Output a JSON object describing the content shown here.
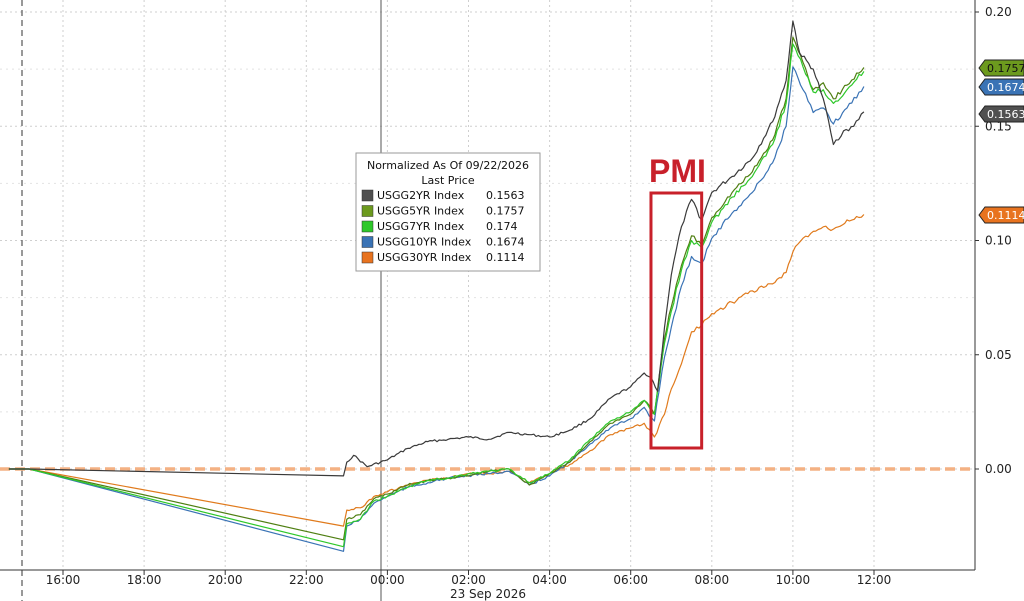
{
  "chart_data": {
    "type": "line",
    "legend": {
      "title": "Normalized As Of 09/22/2026",
      "subtitle": "Last Price",
      "placement": "top-center"
    },
    "annotation": {
      "label": "PMI",
      "x_range": [
        "06:30",
        "07:45"
      ],
      "color": "#c8202a"
    },
    "x_axis": {
      "ticks": [
        "16:00",
        "18:00",
        "20:00",
        "22:00",
        "00:00",
        "02:00",
        "04:00",
        "06:00",
        "08:00",
        "10:00",
        "12:00"
      ],
      "date_label": "23 Sep 2026"
    },
    "y_axis": {
      "ticks": [
        "0.00",
        "0.05",
        "0.10",
        "0.15",
        "0.20"
      ],
      "ylim": [
        -0.042,
        0.21
      ],
      "position": "right"
    },
    "grid": true,
    "series": [
      {
        "name": "USGG2YR Index",
        "last": "0.1563",
        "color": "#3a3a3a",
        "tag_color": "#505050",
        "points": [
          [
            "14:40",
            0
          ],
          [
            "15:10",
            0.0
          ],
          [
            "22:55",
            -0.003
          ],
          [
            "23:00",
            0.003
          ],
          [
            "23:10",
            0.006
          ],
          [
            "23:30",
            0.001
          ],
          [
            "00:00",
            0.004
          ],
          [
            "00:30",
            0.009
          ],
          [
            "01:00",
            0.012
          ],
          [
            "01:30",
            0.013
          ],
          [
            "02:00",
            0.014
          ],
          [
            "02:30",
            0.013
          ],
          [
            "03:00",
            0.016
          ],
          [
            "03:30",
            0.015
          ],
          [
            "04:00",
            0.014
          ],
          [
            "04:30",
            0.017
          ],
          [
            "05:00",
            0.022
          ],
          [
            "05:30",
            0.031
          ],
          [
            "06:00",
            0.036
          ],
          [
            "06:20",
            0.042
          ],
          [
            "06:30",
            0.04
          ],
          [
            "06:40",
            0.034
          ],
          [
            "06:50",
            0.062
          ],
          [
            "07:00",
            0.085
          ],
          [
            "07:15",
            0.106
          ],
          [
            "07:30",
            0.118
          ],
          [
            "07:45",
            0.109
          ],
          [
            "08:00",
            0.121
          ],
          [
            "08:30",
            0.128
          ],
          [
            "09:00",
            0.136
          ],
          [
            "09:30",
            0.152
          ],
          [
            "09:50",
            0.17
          ],
          [
            "10:00",
            0.196
          ],
          [
            "10:10",
            0.182
          ],
          [
            "10:30",
            0.175
          ],
          [
            "10:45",
            0.162
          ],
          [
            "11:00",
            0.142
          ],
          [
            "11:15",
            0.148
          ],
          [
            "11:30",
            0.15
          ],
          [
            "11:45",
            0.1563
          ]
        ]
      },
      {
        "name": "USGG5YR Index",
        "last": "0.1757",
        "color": "#4f7f12",
        "tag_color": "#6c9a1e",
        "points": [
          [
            "14:40",
            0
          ],
          [
            "15:10",
            0.0
          ],
          [
            "22:55",
            -0.031
          ],
          [
            "23:00",
            -0.022
          ],
          [
            "23:20",
            -0.02
          ],
          [
            "23:40",
            -0.013
          ],
          [
            "00:00",
            -0.011
          ],
          [
            "00:30",
            -0.007
          ],
          [
            "01:00",
            -0.005
          ],
          [
            "01:30",
            -0.004
          ],
          [
            "02:00",
            -0.003
          ],
          [
            "02:30",
            -0.001
          ],
          [
            "03:00",
            0.0
          ],
          [
            "03:30",
            -0.007
          ],
          [
            "04:00",
            -0.002
          ],
          [
            "04:30",
            0.003
          ],
          [
            "05:00",
            0.012
          ],
          [
            "05:30",
            0.02
          ],
          [
            "06:00",
            0.024
          ],
          [
            "06:20",
            0.03
          ],
          [
            "06:35",
            0.024
          ],
          [
            "06:50",
            0.057
          ],
          [
            "07:00",
            0.071
          ],
          [
            "07:15",
            0.089
          ],
          [
            "07:30",
            0.102
          ],
          [
            "07:45",
            0.098
          ],
          [
            "08:00",
            0.11
          ],
          [
            "08:30",
            0.121
          ],
          [
            "09:00",
            0.13
          ],
          [
            "09:30",
            0.144
          ],
          [
            "09:50",
            0.162
          ],
          [
            "10:00",
            0.189
          ],
          [
            "10:15",
            0.178
          ],
          [
            "10:30",
            0.166
          ],
          [
            "10:45",
            0.169
          ],
          [
            "11:00",
            0.162
          ],
          [
            "11:20",
            0.168
          ],
          [
            "11:45",
            0.1757
          ]
        ]
      },
      {
        "name": "USGG7YR Index",
        "last": "0.174",
        "color": "#2ec82a",
        "tag_color": "#2ec82a",
        "points": [
          [
            "14:40",
            0
          ],
          [
            "15:10",
            0.0
          ],
          [
            "22:55",
            -0.034
          ],
          [
            "23:00",
            -0.024
          ],
          [
            "23:20",
            -0.022
          ],
          [
            "23:40",
            -0.014
          ],
          [
            "00:00",
            -0.012
          ],
          [
            "00:30",
            -0.008
          ],
          [
            "01:00",
            -0.005
          ],
          [
            "01:30",
            -0.004
          ],
          [
            "02:00",
            -0.002
          ],
          [
            "02:30",
            -0.001
          ],
          [
            "03:00",
            0.0
          ],
          [
            "03:30",
            -0.006
          ],
          [
            "04:00",
            -0.002
          ],
          [
            "04:30",
            0.004
          ],
          [
            "05:00",
            0.013
          ],
          [
            "05:30",
            0.021
          ],
          [
            "06:00",
            0.025
          ],
          [
            "06:20",
            0.03
          ],
          [
            "06:35",
            0.024
          ],
          [
            "06:50",
            0.055
          ],
          [
            "07:00",
            0.069
          ],
          [
            "07:15",
            0.087
          ],
          [
            "07:30",
            0.1
          ],
          [
            "07:45",
            0.097
          ],
          [
            "08:00",
            0.108
          ],
          [
            "08:30",
            0.119
          ],
          [
            "09:00",
            0.128
          ],
          [
            "09:30",
            0.142
          ],
          [
            "09:50",
            0.16
          ],
          [
            "10:00",
            0.186
          ],
          [
            "10:15",
            0.176
          ],
          [
            "10:30",
            0.165
          ],
          [
            "10:45",
            0.166
          ],
          [
            "11:00",
            0.16
          ],
          [
            "11:20",
            0.166
          ],
          [
            "11:45",
            0.174
          ]
        ]
      },
      {
        "name": "USGG10YR Index",
        "last": "0.1674",
        "color": "#3a73b5",
        "tag_color": "#3a73b5",
        "points": [
          [
            "14:40",
            0
          ],
          [
            "15:10",
            0.0
          ],
          [
            "22:55",
            -0.036
          ],
          [
            "23:00",
            -0.025
          ],
          [
            "23:20",
            -0.022
          ],
          [
            "23:40",
            -0.015
          ],
          [
            "00:00",
            -0.012
          ],
          [
            "00:30",
            -0.008
          ],
          [
            "01:00",
            -0.006
          ],
          [
            "01:30",
            -0.004
          ],
          [
            "02:00",
            -0.003
          ],
          [
            "02:30",
            -0.002
          ],
          [
            "03:00",
            -0.001
          ],
          [
            "03:30",
            -0.007
          ],
          [
            "04:00",
            -0.003
          ],
          [
            "04:30",
            0.003
          ],
          [
            "05:00",
            0.011
          ],
          [
            "05:30",
            0.018
          ],
          [
            "06:00",
            0.022
          ],
          [
            "06:20",
            0.027
          ],
          [
            "06:35",
            0.021
          ],
          [
            "06:50",
            0.049
          ],
          [
            "07:00",
            0.062
          ],
          [
            "07:15",
            0.08
          ],
          [
            "07:30",
            0.093
          ],
          [
            "07:45",
            0.09
          ],
          [
            "08:00",
            0.101
          ],
          [
            "08:30",
            0.112
          ],
          [
            "09:00",
            0.121
          ],
          [
            "09:30",
            0.134
          ],
          [
            "09:50",
            0.15
          ],
          [
            "10:00",
            0.176
          ],
          [
            "10:15",
            0.166
          ],
          [
            "10:30",
            0.156
          ],
          [
            "10:45",
            0.158
          ],
          [
            "11:00",
            0.151
          ],
          [
            "11:20",
            0.158
          ],
          [
            "11:45",
            0.1674
          ]
        ]
      },
      {
        "name": "USGG30YR Index",
        "last": "0.1114",
        "color": "#e07a1c",
        "tag_color": "#e8731f",
        "points": [
          [
            "14:40",
            0
          ],
          [
            "15:10",
            0.0
          ],
          [
            "22:55",
            -0.025
          ],
          [
            "23:00",
            -0.018
          ],
          [
            "23:20",
            -0.017
          ],
          [
            "23:40",
            -0.012
          ],
          [
            "00:00",
            -0.01
          ],
          [
            "00:30",
            -0.007
          ],
          [
            "01:00",
            -0.005
          ],
          [
            "01:30",
            -0.004
          ],
          [
            "02:00",
            -0.002
          ],
          [
            "02:30",
            -0.002
          ],
          [
            "03:00",
            -0.001
          ],
          [
            "03:30",
            -0.006
          ],
          [
            "04:00",
            -0.002
          ],
          [
            "04:30",
            0.002
          ],
          [
            "05:00",
            0.008
          ],
          [
            "05:30",
            0.015
          ],
          [
            "06:00",
            0.018
          ],
          [
            "06:20",
            0.02
          ],
          [
            "06:35",
            0.014
          ],
          [
            "06:50",
            0.024
          ],
          [
            "07:00",
            0.035
          ],
          [
            "07:15",
            0.046
          ],
          [
            "07:30",
            0.06
          ],
          [
            "07:45",
            0.063
          ],
          [
            "08:00",
            0.068
          ],
          [
            "08:30",
            0.073
          ],
          [
            "09:00",
            0.078
          ],
          [
            "09:30",
            0.081
          ],
          [
            "09:50",
            0.086
          ],
          [
            "10:00",
            0.095
          ],
          [
            "10:15",
            0.101
          ],
          [
            "10:30",
            0.104
          ],
          [
            "10:45",
            0.106
          ],
          [
            "11:00",
            0.105
          ],
          [
            "11:20",
            0.109
          ],
          [
            "11:45",
            0.1114
          ]
        ]
      }
    ],
    "zero_reference": {
      "value": 0,
      "color": "#f4b183",
      "style": "dashed"
    }
  }
}
